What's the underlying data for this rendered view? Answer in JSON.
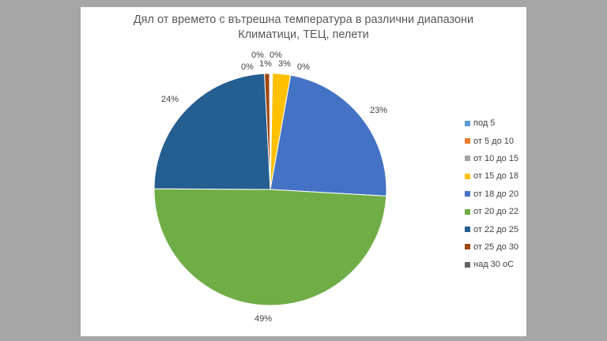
{
  "chart_data": {
    "type": "pie",
    "title": "Дял от времето с вътрешна температура в различни диапазони",
    "subtitle": "Климатици, ТЕЦ, пелети",
    "legend_position": "right",
    "slices": [
      {
        "label": "под 5",
        "value": 0.1,
        "display": "0%",
        "color": "#5B9BD5"
      },
      {
        "label": "от 5 до 10",
        "value": 0.1,
        "display": "0%",
        "color": "#ED7D31"
      },
      {
        "label": "от 10 до 15",
        "value": 0.1,
        "display": "0%",
        "color": "#A5A5A5"
      },
      {
        "label": "от 15 до 18",
        "value": 2.5,
        "display": "3%",
        "color": "#FFC000"
      },
      {
        "label": "от 18 до 20",
        "value": 23,
        "display": "23%",
        "color": "#4472C4"
      },
      {
        "label": "от 20 до 22",
        "value": 49,
        "display": "49%",
        "color": "#70AD47"
      },
      {
        "label": "от 22 до 25",
        "value": 24,
        "display": "24%",
        "color": "#255E91"
      },
      {
        "label": "от 25 до 30",
        "value": 0.7,
        "display": "1%",
        "color": "#9E480E"
      },
      {
        "label": "над 30 оС",
        "value": 0.1,
        "display": "0%",
        "color": "#636363"
      }
    ]
  }
}
